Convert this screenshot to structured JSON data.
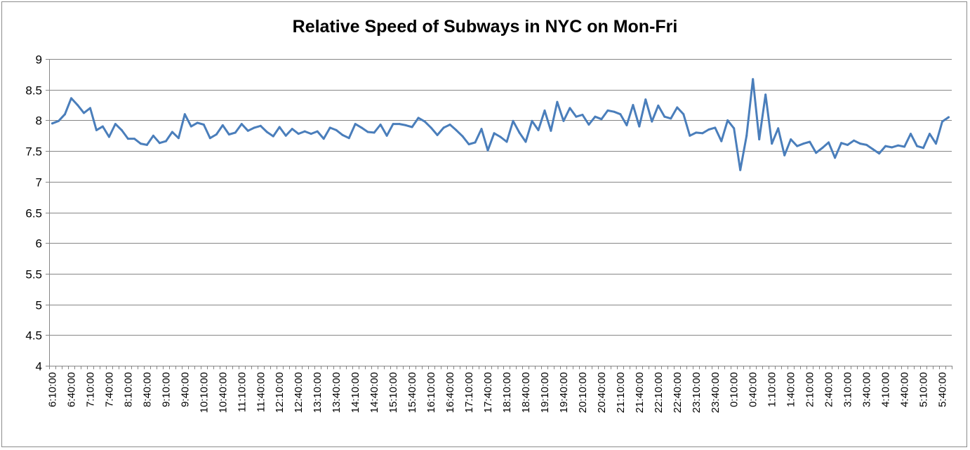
{
  "chart_data": {
    "type": "line",
    "title": "Relative Speed of Subways in NYC on Mon-Fri",
    "xlabel": "",
    "ylabel": "",
    "ylim": [
      4,
      9
    ],
    "yticks": [
      "4",
      "4.5",
      "5",
      "5.5",
      "6",
      "6.5",
      "7",
      "7.5",
      "8",
      "8.5",
      "9"
    ],
    "grid": "horizontal",
    "legend": "none",
    "line_color": "#4a7ebb",
    "tick_labels": [
      "6:10:00",
      "6:40:00",
      "7:10:00",
      "7:40:00",
      "8:10:00",
      "8:40:00",
      "9:10:00",
      "9:40:00",
      "10:10:00",
      "10:40:00",
      "11:10:00",
      "11:40:00",
      "12:10:00",
      "12:40:00",
      "13:10:00",
      "13:40:00",
      "14:10:00",
      "14:40:00",
      "15:10:00",
      "15:40:00",
      "16:10:00",
      "16:40:00",
      "17:10:00",
      "17:40:00",
      "18:10:00",
      "18:40:00",
      "19:10:00",
      "19:40:00",
      "20:10:00",
      "20:40:00",
      "21:10:00",
      "21:40:00",
      "22:10:00",
      "22:40:00",
      "23:10:00",
      "23:40:00",
      "0:10:00",
      "0:40:00",
      "1:10:00",
      "1:40:00",
      "2:10:00",
      "2:40:00",
      "3:10:00",
      "3:40:00",
      "4:10:00",
      "4:40:00",
      "5:10:00",
      "5:40:00"
    ],
    "values": [
      7.95,
      7.99,
      8.1,
      8.36,
      8.25,
      8.12,
      8.2,
      7.84,
      7.9,
      7.73,
      7.94,
      7.84,
      7.7,
      7.7,
      7.62,
      7.6,
      7.75,
      7.63,
      7.66,
      7.81,
      7.71,
      8.1,
      7.9,
      7.96,
      7.93,
      7.71,
      7.77,
      7.92,
      7.77,
      7.8,
      7.94,
      7.83,
      7.88,
      7.91,
      7.81,
      7.74,
      7.89,
      7.75,
      7.86,
      7.78,
      7.82,
      7.78,
      7.82,
      7.7,
      7.88,
      7.84,
      7.76,
      7.71,
      7.94,
      7.88,
      7.81,
      7.8,
      7.93,
      7.75,
      7.94,
      7.94,
      7.92,
      7.89,
      8.04,
      7.98,
      7.88,
      7.76,
      7.88,
      7.93,
      7.84,
      7.74,
      7.61,
      7.64,
      7.86,
      7.51,
      7.79,
      7.73,
      7.65,
      7.99,
      7.8,
      7.65,
      7.99,
      7.84,
      8.16,
      7.83,
      8.3,
      7.99,
      8.2,
      8.06,
      8.09,
      7.93,
      8.06,
      8.02,
      8.16,
      8.14,
      8.1,
      7.92,
      8.25,
      7.9,
      8.34,
      7.98,
      8.24,
      8.06,
      8.03,
      8.21,
      8.1,
      7.75,
      7.8,
      7.79,
      7.85,
      7.88,
      7.66,
      8.0,
      7.87,
      7.19,
      7.75,
      8.67,
      7.69,
      8.42,
      7.62,
      7.87,
      7.43,
      7.69,
      7.58,
      7.62,
      7.65,
      7.47,
      7.55,
      7.64,
      7.39,
      7.63,
      7.6,
      7.67,
      7.62,
      7.6,
      7.53,
      7.46,
      7.58,
      7.56,
      7.59,
      7.57,
      7.78,
      7.58,
      7.55,
      7.78,
      7.62,
      7.98,
      8.05
    ]
  }
}
